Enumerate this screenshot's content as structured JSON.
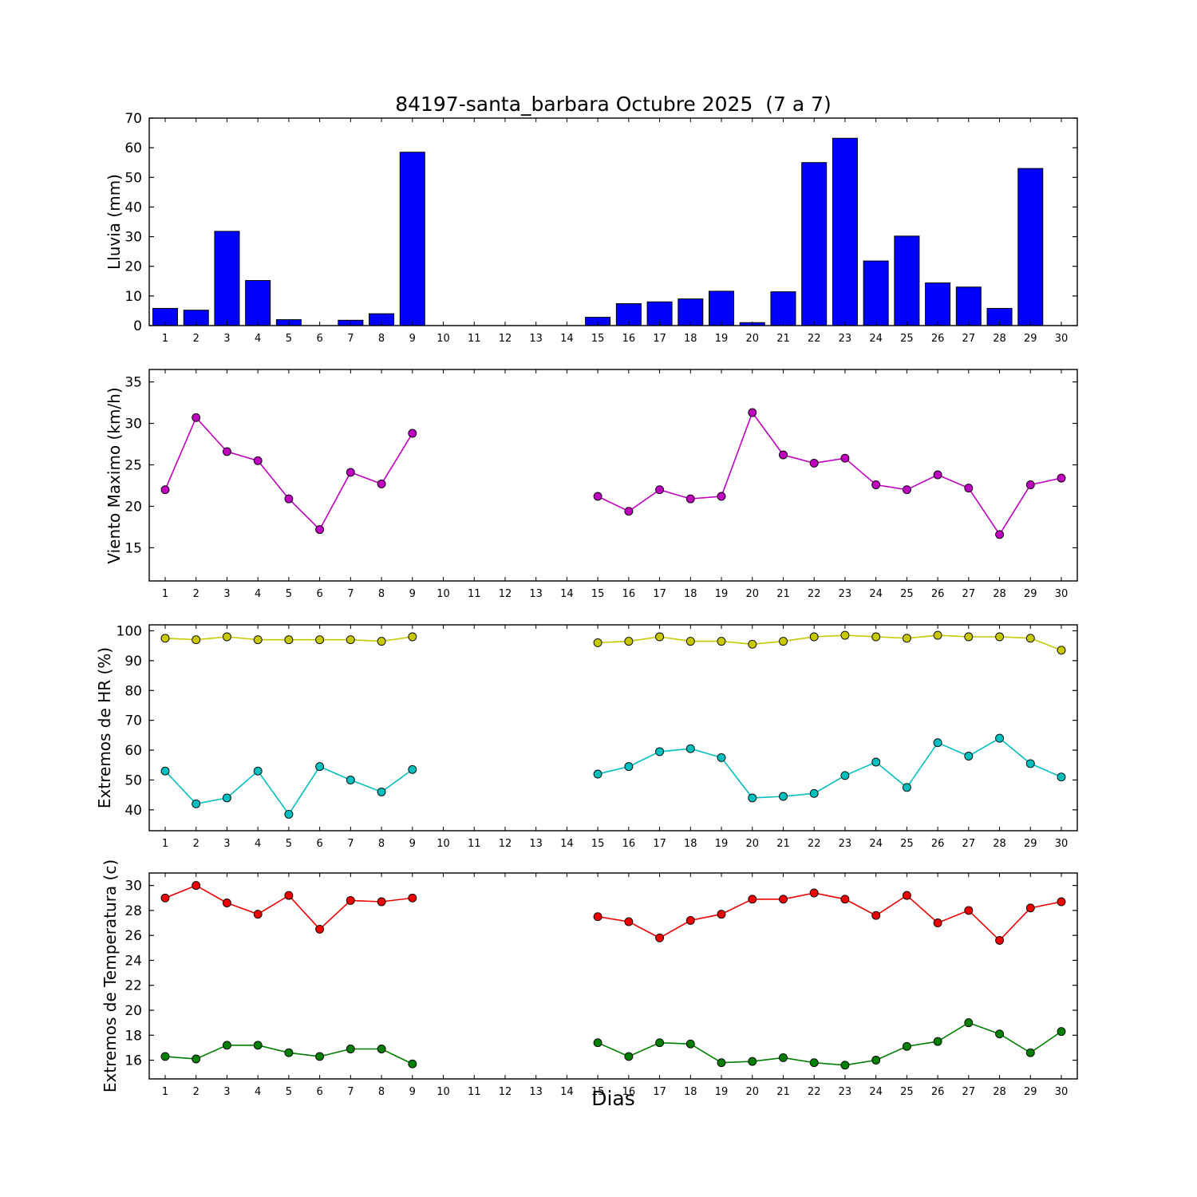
{
  "title": "84197-santa_barbara Octubre 2025  (7 a 7)",
  "xlabel": "Dias",
  "days": [
    1,
    2,
    3,
    4,
    5,
    6,
    7,
    8,
    9,
    10,
    11,
    12,
    13,
    14,
    15,
    16,
    17,
    18,
    19,
    20,
    21,
    22,
    23,
    24,
    25,
    26,
    27,
    28,
    29,
    30
  ],
  "chart_data": [
    {
      "name": "lluvia",
      "type": "bar",
      "ylabel": "Lluvia (mm)",
      "ylim": [
        0,
        70
      ],
      "yticks": [
        0,
        10,
        20,
        30,
        40,
        50,
        60,
        70
      ],
      "series": [
        {
          "name": "lluvia-mm",
          "color": "#0000ff",
          "values": [
            5.8,
            5.2,
            31.8,
            15.2,
            2.0,
            0,
            1.8,
            4.0,
            58.5,
            null,
            null,
            null,
            null,
            null,
            2.8,
            7.4,
            8.0,
            9.0,
            11.6,
            1.0,
            11.4,
            55.0,
            63.2,
            21.8,
            30.2,
            14.4,
            13.0,
            5.8,
            53.0,
            0
          ]
        }
      ]
    },
    {
      "name": "viento",
      "type": "line",
      "ylabel": "Viento Maximo (km/h)",
      "ylim": [
        11,
        36.5
      ],
      "yticks": [
        15,
        20,
        25,
        30,
        35
      ],
      "series": [
        {
          "name": "viento-maximo",
          "color": "#bf00bf",
          "values": [
            22.0,
            30.7,
            26.6,
            25.5,
            20.9,
            17.2,
            24.1,
            22.7,
            28.8,
            null,
            null,
            null,
            null,
            null,
            21.2,
            19.4,
            22.0,
            20.9,
            21.2,
            31.3,
            26.2,
            25.2,
            25.8,
            22.6,
            22.0,
            23.8,
            22.2,
            16.6,
            22.6,
            23.4
          ]
        }
      ]
    },
    {
      "name": "extremos-hr",
      "type": "line",
      "ylabel": "Extremos de HR (%)",
      "ylim": [
        33,
        102
      ],
      "yticks": [
        40,
        50,
        60,
        70,
        80,
        90,
        100
      ],
      "series": [
        {
          "name": "hr-max",
          "color": "#c8c800",
          "values": [
            97.5,
            97.0,
            98.0,
            97.0,
            97.0,
            97.0,
            97.0,
            96.5,
            98.0,
            null,
            null,
            null,
            null,
            null,
            96.0,
            96.5,
            98.0,
            96.5,
            96.5,
            95.5,
            96.5,
            98.0,
            98.5,
            98.0,
            97.5,
            98.5,
            98.0,
            98.0,
            97.5,
            93.5
          ]
        },
        {
          "name": "hr-min",
          "color": "#00bfbf",
          "values": [
            53.0,
            42.0,
            44.0,
            53.0,
            38.5,
            54.5,
            50.0,
            46.0,
            53.5,
            null,
            null,
            null,
            null,
            null,
            52.0,
            54.5,
            59.5,
            60.5,
            57.5,
            44.0,
            44.5,
            45.5,
            51.5,
            56.0,
            47.5,
            62.5,
            58.0,
            64.0,
            55.5,
            51.0
          ]
        }
      ]
    },
    {
      "name": "extremos-temperatura",
      "type": "line",
      "ylabel": "Extremos de Temperatura (c)",
      "ylim": [
        14.5,
        31
      ],
      "yticks": [
        16,
        18,
        20,
        22,
        24,
        26,
        28,
        30
      ],
      "series": [
        {
          "name": "temperatura-max",
          "color": "#ee0000",
          "values": [
            29.0,
            30.0,
            28.6,
            27.7,
            29.2,
            26.5,
            28.8,
            28.7,
            29.0,
            null,
            null,
            null,
            null,
            null,
            27.5,
            27.1,
            25.8,
            27.2,
            27.7,
            28.9,
            28.9,
            29.4,
            28.9,
            27.6,
            29.2,
            27.0,
            28.0,
            25.6,
            28.2,
            28.7
          ]
        },
        {
          "name": "temperatura-min",
          "color": "#007f00",
          "values": [
            16.3,
            16.1,
            17.2,
            17.2,
            16.6,
            16.3,
            16.9,
            16.9,
            15.7,
            null,
            null,
            null,
            null,
            null,
            17.4,
            16.3,
            17.4,
            17.3,
            15.8,
            15.9,
            16.2,
            15.8,
            15.6,
            16.0,
            17.1,
            17.5,
            19.0,
            18.1,
            16.6,
            18.3
          ]
        }
      ]
    }
  ]
}
